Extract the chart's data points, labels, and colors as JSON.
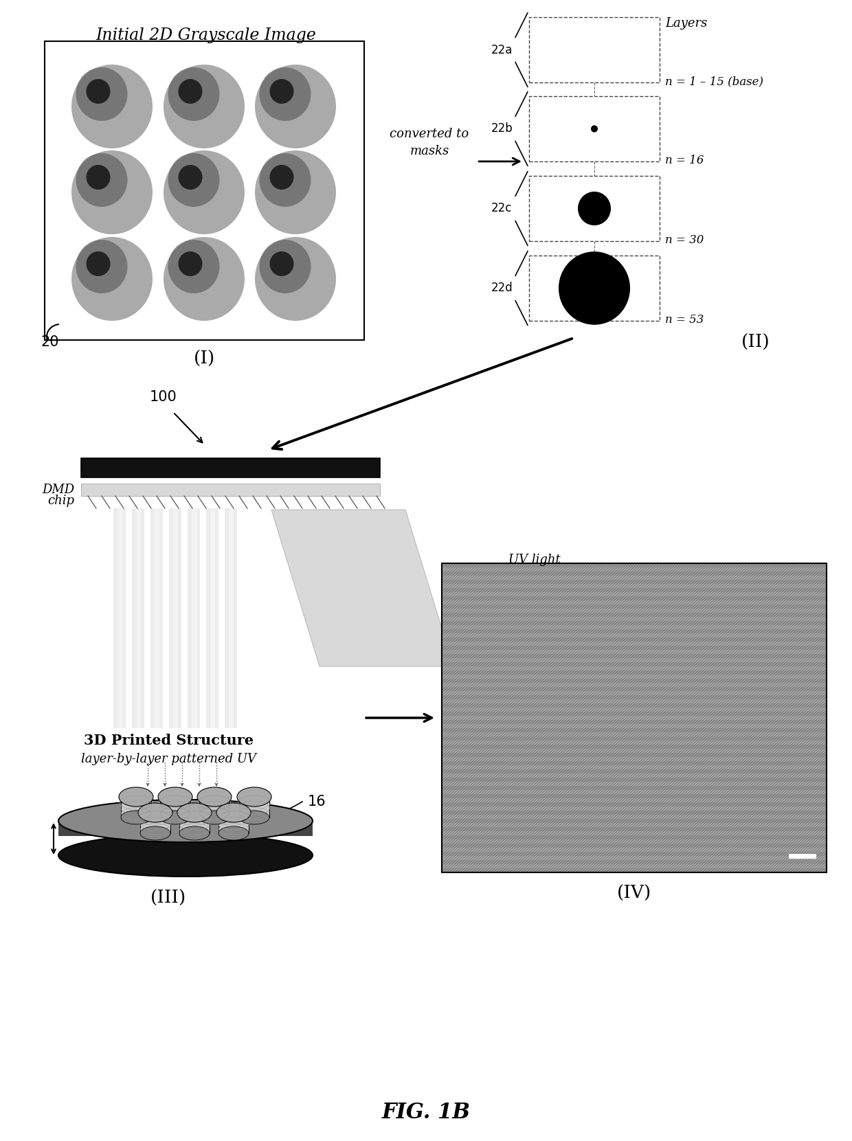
{
  "title": "FIG. 1B",
  "bg_color": "#ffffff",
  "panel_I_title": "Initial 2D Grayscale Image",
  "panel_II_label": "(II)",
  "panel_III_label": "(III)",
  "panel_IV_label": "(IV)",
  "panel_I_label": "(I)",
  "label_20": "20",
  "label_100": "100",
  "label_16": "16",
  "mask_labels": [
    "22a",
    "22b",
    "22c",
    "22d"
  ],
  "mask_layer_labels": [
    "n = 1 – 15 (base)",
    "n = 16",
    "n = 30",
    "n = 53"
  ],
  "layers_text": "Layers",
  "converted_line1": "converted to",
  "converted_line2": "masks",
  "dmd_line1": "DMD",
  "dmd_line2": "chip",
  "uv_text": "UV light",
  "printed_line1": "3D Printed Structure",
  "printed_line2": "layer-by-layer patterned UV",
  "circle_outer_color": "#b8b8b8",
  "circle_mid_color": "#787878",
  "circle_dark_color": "#303030",
  "box_bg": "#f5f5f5"
}
